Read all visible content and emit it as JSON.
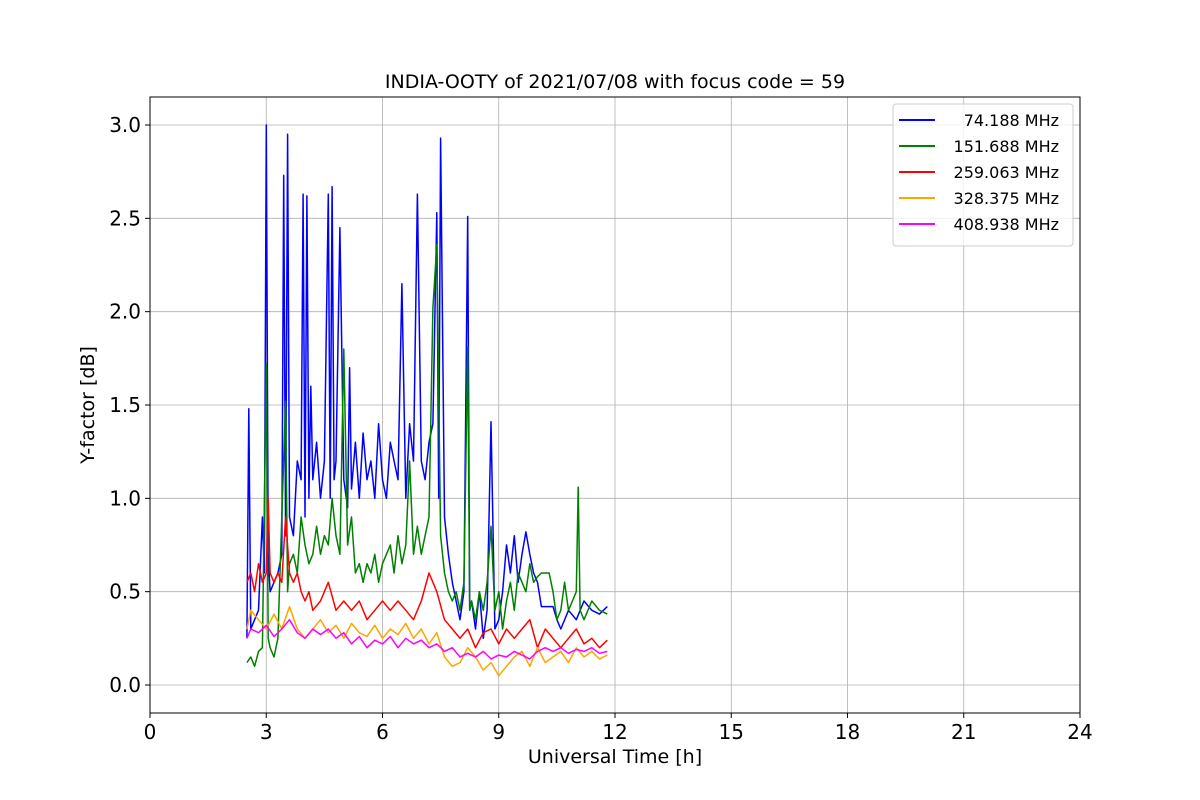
{
  "chart_data": {
    "type": "line",
    "title": "INDIA-OOTY of 2021/07/08 with focus code = 59",
    "xlabel": "Universal Time [h]",
    "ylabel": "Y-factor [dB]",
    "xlim": [
      0,
      24
    ],
    "ylim": [
      -0.15,
      3.15
    ],
    "xticks": [
      0,
      3,
      6,
      9,
      12,
      15,
      18,
      21,
      24
    ],
    "xtick_labels": [
      "0",
      "3",
      "6",
      "9",
      "12",
      "15",
      "18",
      "21",
      "24"
    ],
    "yticks": [
      0.0,
      0.5,
      1.0,
      1.5,
      2.0,
      2.5,
      3.0
    ],
    "ytick_labels": [
      "0.0",
      "0.5",
      "1.0",
      "1.5",
      "2.0",
      "2.5",
      "3.0"
    ],
    "grid": true,
    "legend_position": "top-right",
    "series": [
      {
        "name": "74.188 MHz",
        "color": "#0000ff",
        "x": [
          2.5,
          2.55,
          2.6,
          2.7,
          2.8,
          2.9,
          2.95,
          3.0,
          3.05,
          3.1,
          3.2,
          3.3,
          3.4,
          3.45,
          3.5,
          3.55,
          3.6,
          3.7,
          3.8,
          3.9,
          3.95,
          4.0,
          4.05,
          4.1,
          4.15,
          4.2,
          4.3,
          4.4,
          4.5,
          4.6,
          4.65,
          4.7,
          4.75,
          4.8,
          4.9,
          5.0,
          5.1,
          5.15,
          5.2,
          5.3,
          5.4,
          5.5,
          5.6,
          5.7,
          5.8,
          5.9,
          6.0,
          6.1,
          6.2,
          6.3,
          6.4,
          6.5,
          6.6,
          6.7,
          6.8,
          6.9,
          7.0,
          7.1,
          7.2,
          7.3,
          7.4,
          7.45,
          7.5,
          7.6,
          7.7,
          7.8,
          7.9,
          8.0,
          8.1,
          8.2,
          8.25,
          8.3,
          8.4,
          8.5,
          8.6,
          8.7,
          8.8,
          8.9,
          9.0,
          9.1,
          9.2,
          9.3,
          9.4,
          9.5,
          9.6,
          9.7,
          9.8,
          9.9,
          10.0,
          10.1,
          10.2,
          10.3,
          10.4,
          10.5,
          10.6,
          10.8,
          11.0,
          11.2,
          11.4,
          11.6,
          11.8
        ],
        "y": [
          0.25,
          1.48,
          0.3,
          0.35,
          0.4,
          0.9,
          0.6,
          3.0,
          0.7,
          0.5,
          0.55,
          0.6,
          0.7,
          2.73,
          0.8,
          2.95,
          0.9,
          0.8,
          1.2,
          1.1,
          2.63,
          0.9,
          2.62,
          1.0,
          1.6,
          1.1,
          1.3,
          1.0,
          1.2,
          2.63,
          1.0,
          2.67,
          1.1,
          1.2,
          2.45,
          1.1,
          0.95,
          1.7,
          1.05,
          1.3,
          1.0,
          1.35,
          1.1,
          1.2,
          1.0,
          1.4,
          1.1,
          1.0,
          1.3,
          1.2,
          1.1,
          2.15,
          1.0,
          1.4,
          1.2,
          2.63,
          1.2,
          1.1,
          1.3,
          1.4,
          2.53,
          1.0,
          2.93,
          0.9,
          0.7,
          0.55,
          0.45,
          0.35,
          0.5,
          2.51,
          0.4,
          0.45,
          0.3,
          0.5,
          0.25,
          0.4,
          1.41,
          0.3,
          0.35,
          0.5,
          0.75,
          0.6,
          0.8,
          0.55,
          0.7,
          0.82,
          0.7,
          0.6,
          0.55,
          0.42,
          0.42,
          0.42,
          0.42,
          0.35,
          0.3,
          0.4,
          0.35,
          0.45,
          0.4,
          0.38,
          0.42
        ]
      },
      {
        "name": "151.688 MHz",
        "color": "#008000",
        "x": [
          2.5,
          2.6,
          2.7,
          2.8,
          2.9,
          3.0,
          3.05,
          3.1,
          3.2,
          3.3,
          3.4,
          3.5,
          3.55,
          3.6,
          3.7,
          3.8,
          3.9,
          4.0,
          4.1,
          4.2,
          4.3,
          4.4,
          4.5,
          4.6,
          4.7,
          4.8,
          4.9,
          5.0,
          5.1,
          5.2,
          5.3,
          5.4,
          5.5,
          5.6,
          5.7,
          5.8,
          5.9,
          6.0,
          6.1,
          6.2,
          6.3,
          6.4,
          6.5,
          6.6,
          6.7,
          6.8,
          6.9,
          7.0,
          7.1,
          7.2,
          7.3,
          7.4,
          7.5,
          7.6,
          7.7,
          7.8,
          7.9,
          8.0,
          8.1,
          8.2,
          8.25,
          8.3,
          8.4,
          8.5,
          8.6,
          8.7,
          8.8,
          8.9,
          9.0,
          9.1,
          9.2,
          9.3,
          9.4,
          9.5,
          9.6,
          9.7,
          9.8,
          9.9,
          10.0,
          10.1,
          10.2,
          10.3,
          10.4,
          10.5,
          10.6,
          10.7,
          10.8,
          10.9,
          11.0,
          11.05,
          11.1,
          11.2,
          11.4,
          11.6,
          11.8
        ],
        "y": [
          0.12,
          0.15,
          0.1,
          0.18,
          0.2,
          1.72,
          0.25,
          0.2,
          0.15,
          0.25,
          0.9,
          1.52,
          0.5,
          0.65,
          0.7,
          0.6,
          0.9,
          0.75,
          0.65,
          0.7,
          0.85,
          0.7,
          0.8,
          0.75,
          1.0,
          0.8,
          0.7,
          1.8,
          0.75,
          0.9,
          0.6,
          0.65,
          0.55,
          0.65,
          0.6,
          0.7,
          0.55,
          0.65,
          0.7,
          0.75,
          0.6,
          0.8,
          0.65,
          0.75,
          1.2,
          0.7,
          0.85,
          0.7,
          0.8,
          0.9,
          2.02,
          2.36,
          0.8,
          0.6,
          0.5,
          0.45,
          0.5,
          0.4,
          0.55,
          1.81,
          0.4,
          0.45,
          0.35,
          0.5,
          0.4,
          0.55,
          0.85,
          0.4,
          0.5,
          0.3,
          0.45,
          0.55,
          0.4,
          0.6,
          0.55,
          0.5,
          0.65,
          0.55,
          0.58,
          0.6,
          0.6,
          0.6,
          0.5,
          0.35,
          0.4,
          0.55,
          0.4,
          0.45,
          0.5,
          1.06,
          0.4,
          0.35,
          0.45,
          0.4,
          0.38
        ]
      },
      {
        "name": "259.063 MHz",
        "color": "#ff0000",
        "x": [
          2.5,
          2.6,
          2.7,
          2.8,
          2.9,
          3.0,
          3.05,
          3.1,
          3.2,
          3.3,
          3.4,
          3.5,
          3.6,
          3.7,
          3.8,
          3.9,
          4.0,
          4.1,
          4.2,
          4.4,
          4.6,
          4.8,
          5.0,
          5.2,
          5.4,
          5.6,
          5.8,
          6.0,
          6.2,
          6.4,
          6.6,
          6.8,
          7.0,
          7.2,
          7.4,
          7.6,
          7.8,
          8.0,
          8.2,
          8.4,
          8.6,
          8.8,
          9.0,
          9.2,
          9.4,
          9.6,
          9.8,
          10.0,
          10.2,
          10.4,
          10.6,
          10.8,
          11.0,
          11.2,
          11.4,
          11.6,
          11.8
        ],
        "y": [
          0.55,
          0.6,
          0.5,
          0.65,
          0.55,
          0.6,
          1.0,
          0.6,
          0.55,
          0.6,
          0.55,
          0.9,
          0.6,
          0.55,
          0.6,
          0.5,
          0.45,
          0.5,
          0.4,
          0.45,
          0.55,
          0.4,
          0.45,
          0.4,
          0.45,
          0.35,
          0.4,
          0.45,
          0.4,
          0.45,
          0.4,
          0.35,
          0.45,
          0.6,
          0.5,
          0.35,
          0.3,
          0.25,
          0.3,
          0.2,
          0.28,
          0.3,
          0.22,
          0.3,
          0.25,
          0.3,
          0.35,
          0.2,
          0.3,
          0.25,
          0.2,
          0.25,
          0.3,
          0.22,
          0.25,
          0.2,
          0.24
        ]
      },
      {
        "name": "328.375 MHz",
        "color": "#ffa500",
        "x": [
          2.5,
          2.6,
          2.8,
          3.0,
          3.2,
          3.4,
          3.6,
          3.8,
          4.0,
          4.2,
          4.4,
          4.6,
          4.8,
          5.0,
          5.2,
          5.4,
          5.6,
          5.8,
          6.0,
          6.2,
          6.4,
          6.6,
          6.8,
          7.0,
          7.2,
          7.4,
          7.6,
          7.8,
          8.0,
          8.2,
          8.4,
          8.6,
          8.8,
          9.0,
          9.2,
          9.4,
          9.6,
          9.8,
          10.0,
          10.2,
          10.4,
          10.6,
          10.8,
          11.0,
          11.2,
          11.4,
          11.6,
          11.8
        ],
        "y": [
          0.3,
          0.4,
          0.35,
          0.3,
          0.38,
          0.3,
          0.42,
          0.3,
          0.25,
          0.3,
          0.35,
          0.28,
          0.32,
          0.25,
          0.33,
          0.28,
          0.26,
          0.32,
          0.25,
          0.3,
          0.27,
          0.33,
          0.25,
          0.3,
          0.22,
          0.28,
          0.15,
          0.1,
          0.12,
          0.2,
          0.15,
          0.08,
          0.12,
          0.05,
          0.1,
          0.15,
          0.18,
          0.1,
          0.2,
          0.12,
          0.15,
          0.18,
          0.12,
          0.2,
          0.15,
          0.18,
          0.14,
          0.16
        ]
      },
      {
        "name": "408.938 MHz",
        "color": "#ff00ff",
        "x": [
          2.5,
          2.6,
          2.8,
          3.0,
          3.2,
          3.4,
          3.6,
          3.8,
          4.0,
          4.2,
          4.4,
          4.6,
          4.8,
          5.0,
          5.2,
          5.4,
          5.6,
          5.8,
          6.0,
          6.2,
          6.4,
          6.6,
          6.8,
          7.0,
          7.2,
          7.4,
          7.6,
          7.8,
          8.0,
          8.2,
          8.4,
          8.6,
          8.8,
          9.0,
          9.2,
          9.4,
          9.6,
          9.8,
          10.0,
          10.2,
          10.4,
          10.6,
          10.8,
          11.0,
          11.2,
          11.4,
          11.6,
          11.8
        ],
        "y": [
          0.25,
          0.3,
          0.28,
          0.32,
          0.26,
          0.3,
          0.35,
          0.28,
          0.25,
          0.3,
          0.27,
          0.3,
          0.25,
          0.28,
          0.22,
          0.26,
          0.2,
          0.24,
          0.22,
          0.26,
          0.2,
          0.25,
          0.22,
          0.24,
          0.2,
          0.22,
          0.18,
          0.2,
          0.15,
          0.17,
          0.15,
          0.18,
          0.14,
          0.16,
          0.15,
          0.18,
          0.16,
          0.14,
          0.18,
          0.2,
          0.18,
          0.2,
          0.17,
          0.19,
          0.18,
          0.2,
          0.17,
          0.18
        ]
      }
    ]
  }
}
